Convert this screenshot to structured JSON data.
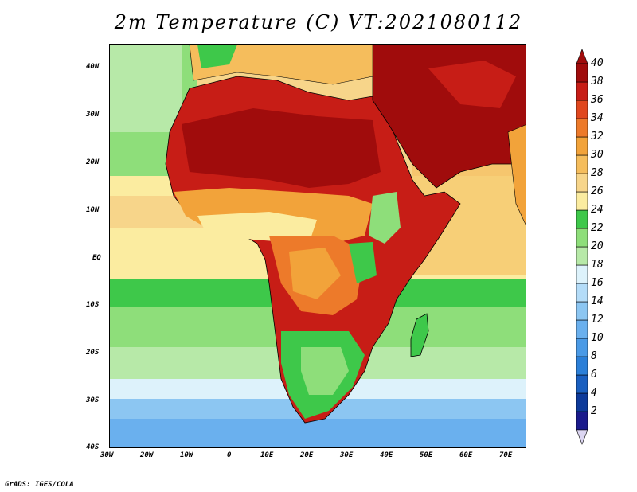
{
  "title": "2m Temperature (C) VT:2021080112",
  "credit": "GrADS: IGES/COLA",
  "lat_labels": [
    "40N",
    "30N",
    "20N",
    "10N",
    "EQ",
    "10S",
    "20S",
    "30S",
    "40S"
  ],
  "lon_labels": [
    "30W",
    "20W",
    "10W",
    "0",
    "10E",
    "20E",
    "30E",
    "40E",
    "50E",
    "60E",
    "70E"
  ],
  "colorbar": {
    "levels": [
      "2",
      "4",
      "6",
      "8",
      "10",
      "12",
      "14",
      "16",
      "18",
      "20",
      "22",
      "24",
      "26",
      "28",
      "30",
      "32",
      "34",
      "36",
      "38",
      "40"
    ],
    "colors": [
      "#1a1a8c",
      "#0d3a9a",
      "#1a5fc0",
      "#2b7fd8",
      "#4a9ae6",
      "#6ab0ee",
      "#8cc6f2",
      "#b4dcf8",
      "#ddf2fb",
      "#b7e9a8",
      "#8ede7a",
      "#3ec84a",
      "#fbeca0",
      "#f7d58a",
      "#f5bd5c",
      "#f2a33a",
      "#ed7a2a",
      "#e0471e",
      "#c71d16",
      "#a00c0c"
    ]
  },
  "legend_colors": {
    "land_hot": "#a00c0c",
    "ocean_warm": "#f7d58a",
    "ocean_cool": "#3ec84a"
  }
}
